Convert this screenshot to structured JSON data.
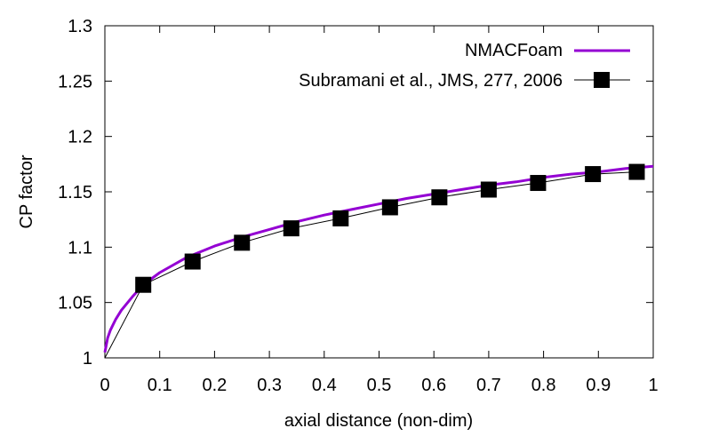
{
  "chart_data": {
    "type": "line",
    "xlabel": "axial distance (non-dim)",
    "ylabel": "CP factor",
    "xlim": [
      0,
      1
    ],
    "ylim": [
      1,
      1.3
    ],
    "xticks": [
      "0",
      "0.1",
      "0.2",
      "0.3",
      "0.4",
      "0.5",
      "0.6",
      "0.7",
      "0.8",
      "0.9",
      "1"
    ],
    "yticks": [
      "1",
      "1.05",
      "1.1",
      "1.15",
      "1.2",
      "1.25",
      "1.3"
    ],
    "legend_position": "top-right",
    "grid": false,
    "series": [
      {
        "name": "NMACFoam",
        "style": "line",
        "color": "#9400d3",
        "x": [
          0,
          0.005,
          0.01,
          0.02,
          0.03,
          0.05,
          0.07,
          0.1,
          0.15,
          0.2,
          0.25,
          0.3,
          0.35,
          0.4,
          0.45,
          0.5,
          0.55,
          0.6,
          0.65,
          0.7,
          0.75,
          0.8,
          0.85,
          0.9,
          0.95,
          1.0
        ],
        "y": [
          1.005,
          1.018,
          1.025,
          1.035,
          1.043,
          1.055,
          1.066,
          1.077,
          1.091,
          1.101,
          1.109,
          1.116,
          1.123,
          1.129,
          1.134,
          1.139,
          1.144,
          1.148,
          1.152,
          1.156,
          1.159,
          1.163,
          1.166,
          1.168,
          1.171,
          1.173
        ]
      },
      {
        "name": "Subramani et al., JMS, 277, 2006",
        "style": "line-marker",
        "color": "#000000",
        "marker": "square",
        "x": [
          0,
          0.07,
          0.16,
          0.25,
          0.34,
          0.43,
          0.52,
          0.61,
          0.7,
          0.79,
          0.89,
          0.97
        ],
        "y": [
          1.0,
          1.066,
          1.087,
          1.104,
          1.117,
          1.126,
          1.136,
          1.145,
          1.152,
          1.158,
          1.166,
          1.168
        ]
      }
    ]
  }
}
